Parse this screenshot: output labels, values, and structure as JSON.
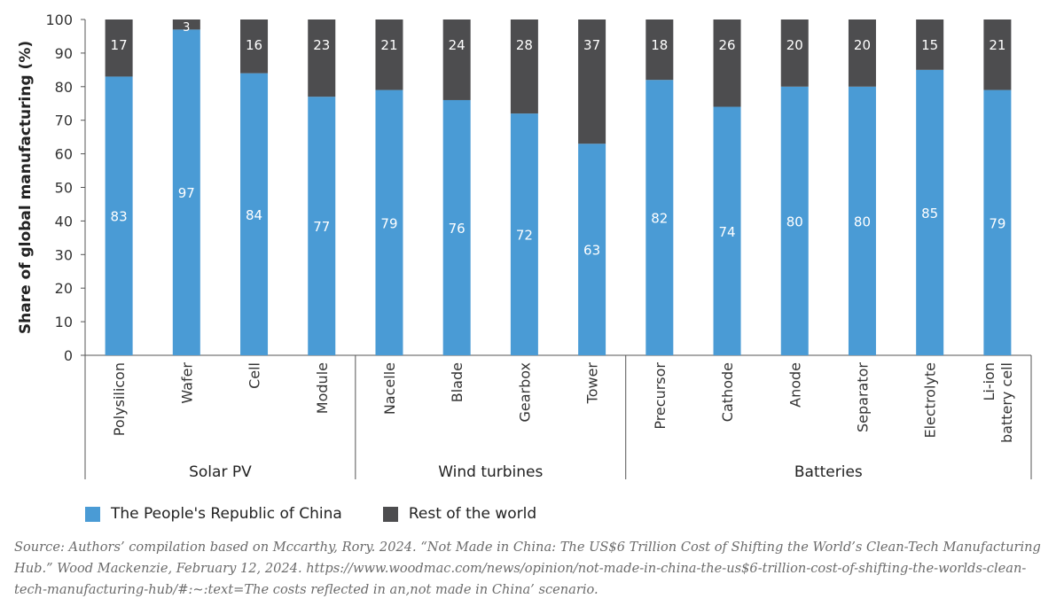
{
  "chart_data": {
    "type": "bar",
    "stacked": true,
    "ylabel": "Share of global manufacturing (%)",
    "ylim": [
      0,
      100
    ],
    "yticks": [
      0,
      10,
      20,
      30,
      40,
      50,
      60,
      70,
      80,
      90,
      100
    ],
    "categories": [
      "Polysilicon",
      "Wafer",
      "Cell",
      "Module",
      "Nacelle",
      "Blade",
      "Gearbox",
      "Tower",
      "Precursor",
      "Cathode",
      "Anode",
      "Separator",
      "Electrolyte",
      "Li-ion battery cell"
    ],
    "category_labels": [
      [
        "Polysilicon"
      ],
      [
        "Wafer"
      ],
      [
        "Cell"
      ],
      [
        "Module"
      ],
      [
        "Nacelle"
      ],
      [
        "Blade"
      ],
      [
        "Gearbox"
      ],
      [
        "Tower"
      ],
      [
        "Precursor"
      ],
      [
        "Cathode"
      ],
      [
        "Anode"
      ],
      [
        "Separator"
      ],
      [
        "Electrolyte"
      ],
      [
        "Li-ion",
        "battery cell"
      ]
    ],
    "groups": [
      {
        "label": "Solar PV",
        "start": 0,
        "end": 3
      },
      {
        "label": "Wind turbines",
        "start": 4,
        "end": 7
      },
      {
        "label": "Batteries",
        "start": 8,
        "end": 13
      }
    ],
    "series": [
      {
        "name": "The People's Republic of China",
        "color": "#4a9bd5",
        "label_color": "#ffffff",
        "values": [
          83,
          97,
          84,
          77,
          79,
          76,
          72,
          63,
          82,
          74,
          80,
          80,
          85,
          79
        ]
      },
      {
        "name": "Rest of the world",
        "color": "#4d4d4f",
        "label_color": "#ffffff",
        "values": [
          17,
          3,
          16,
          23,
          21,
          24,
          28,
          37,
          18,
          26,
          20,
          20,
          15,
          21
        ]
      }
    ],
    "legend_position": "bottom-left",
    "grid": false
  },
  "source_text": "Source: Authors’ compilation based on Mccarthy, Rory. 2024. “Not Made in China: The US$6 Trillion Cost of Shifting the World’s Clean-Tech Manufacturing Hub.” Wood Mackenzie, February 12, 2024. https://www.woodmac.com/news/opinion/not-made-in-china-the-us$6-trillion-cost-of-shifting-the-worlds-clean-tech-manufacturing-hub/#:~:text=The costs reflected in an,not made in China’ scenario."
}
